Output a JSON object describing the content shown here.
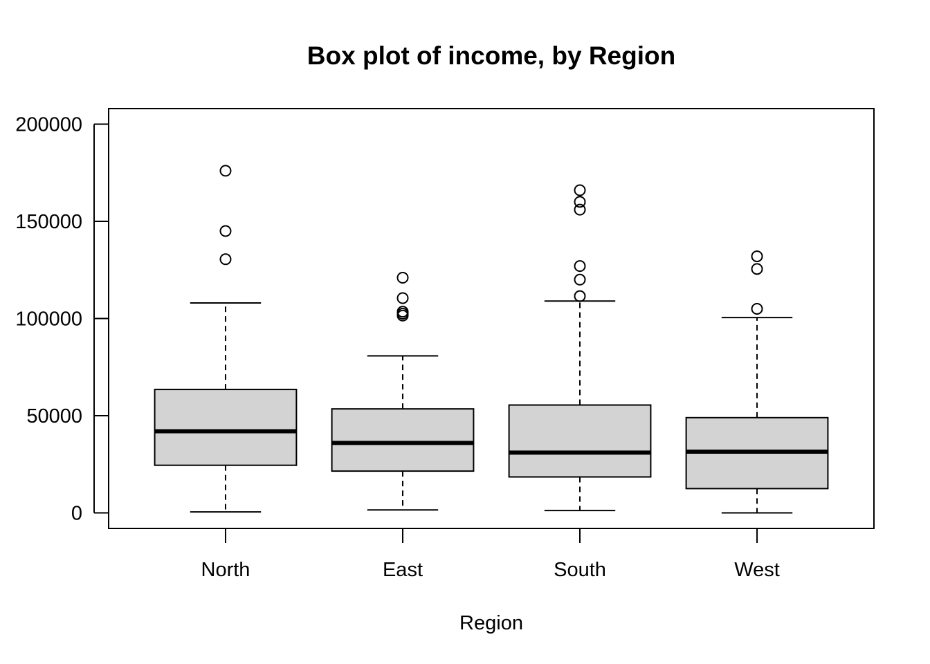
{
  "chart_data": {
    "type": "box",
    "title": "Box plot of income, by Region",
    "xlabel": "Region",
    "ylabel": "",
    "ylim": [
      -8000,
      208000
    ],
    "yticks": [
      0,
      50000,
      100000,
      150000,
      200000
    ],
    "ytick_labels": [
      "0",
      "50000",
      "100000",
      "150000",
      "200000"
    ],
    "grid": false,
    "box_fill": "#d3d3d3",
    "categories": [
      "North",
      "East",
      "South",
      "West"
    ],
    "boxes": [
      {
        "category": "North",
        "whisker_low": 500,
        "q1": 24500,
        "median": 42000,
        "q3": 63500,
        "whisker_high": 108000,
        "outliers": [
          130500,
          145000,
          176000
        ]
      },
      {
        "category": "East",
        "whisker_low": 1500,
        "q1": 21500,
        "median": 36000,
        "q3": 53500,
        "whisker_high": 80800,
        "outliers": [
          101500,
          102500,
          103500,
          110500,
          121000
        ]
      },
      {
        "category": "South",
        "whisker_low": 1200,
        "q1": 18500,
        "median": 31000,
        "q3": 55500,
        "whisker_high": 109000,
        "outliers": [
          111500,
          120000,
          127000,
          156000,
          160000,
          166000
        ]
      },
      {
        "category": "West",
        "whisker_low": 0,
        "q1": 12500,
        "median": 31500,
        "q3": 49000,
        "whisker_high": 100500,
        "outliers": [
          105000,
          125500,
          132000
        ]
      }
    ]
  }
}
